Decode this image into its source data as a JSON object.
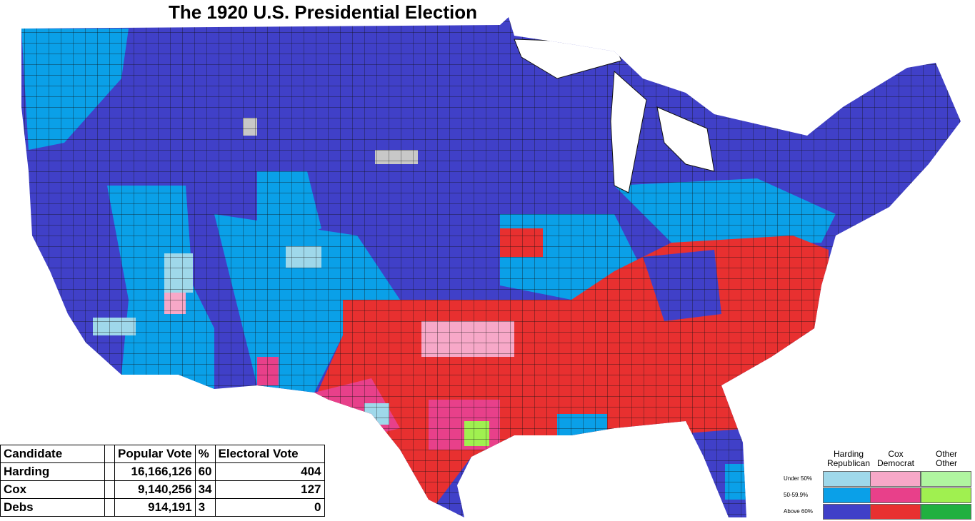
{
  "title": "The 1920 U.S. Presidential Election",
  "table": {
    "header": {
      "candidate": "Candidate",
      "popular_vote": "Popular Vote",
      "percent": "%",
      "electoral_vote": "Electoral Vote"
    },
    "rows": [
      {
        "candidate": "Harding",
        "popular_vote": "16,166,126",
        "percent": "60",
        "electoral_vote": "404"
      },
      {
        "candidate": "Cox",
        "popular_vote": "9,140,256",
        "percent": "34",
        "electoral_vote": "127"
      },
      {
        "candidate": "Debs",
        "popular_vote": "914,191",
        "percent": "3",
        "electoral_vote": "0"
      }
    ]
  },
  "legend": {
    "columns": [
      {
        "candidate": "Harding",
        "party": "Republican"
      },
      {
        "candidate": "Cox",
        "party": "Democrat"
      },
      {
        "candidate": "Other",
        "party": "Other"
      }
    ],
    "rows": [
      "Under 50%",
      "50-59.9%",
      "Above 60%"
    ],
    "swatches": [
      [
        "#9fd8ea",
        "#f7a8c8",
        "#b0f5a0"
      ],
      [
        "#0aa0e8",
        "#e8408a",
        "#a0f050"
      ],
      [
        "#4040c8",
        "#e83030",
        "#20b040"
      ]
    ]
  }
}
